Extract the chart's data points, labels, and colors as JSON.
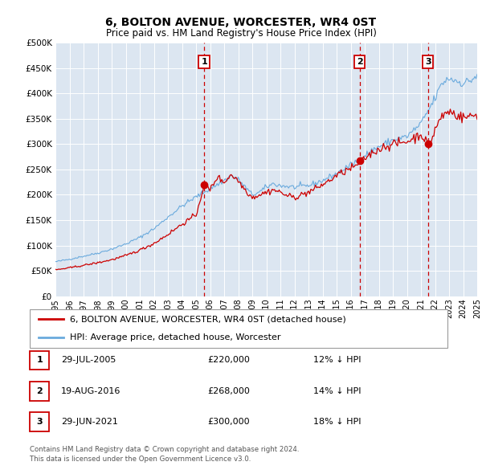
{
  "title": "6, BOLTON AVENUE, WORCESTER, WR4 0ST",
  "subtitle": "Price paid vs. HM Land Registry's House Price Index (HPI)",
  "footer1": "Contains HM Land Registry data © Crown copyright and database right 2024.",
  "footer2": "This data is licensed under the Open Government Licence v3.0.",
  "legend1": "6, BOLTON AVENUE, WORCESTER, WR4 0ST (detached house)",
  "legend2": "HPI: Average price, detached house, Worcester",
  "transaction_labels": [
    {
      "num": "1",
      "date": "29-JUL-2005",
      "price": "£220,000",
      "hpi": "12% ↓ HPI",
      "year": 2005.58
    },
    {
      "num": "2",
      "date": "19-AUG-2016",
      "price": "£268,000",
      "hpi": "14% ↓ HPI",
      "year": 2016.63
    },
    {
      "num": "3",
      "date": "29-JUN-2021",
      "price": "£300,000",
      "hpi": "18% ↓ HPI",
      "year": 2021.5
    }
  ],
  "hpi_color": "#6aaadd",
  "price_color": "#cc0000",
  "vline_color": "#cc0000",
  "plot_bg": "#dce6f1",
  "ylim": [
    0,
    500000
  ],
  "xlim": [
    1995,
    2025
  ],
  "yticks": [
    0,
    50000,
    100000,
    150000,
    200000,
    250000,
    300000,
    350000,
    400000,
    450000,
    500000
  ],
  "xticks": [
    1995,
    1996,
    1997,
    1998,
    1999,
    2000,
    2001,
    2002,
    2003,
    2004,
    2005,
    2006,
    2007,
    2008,
    2009,
    2010,
    2011,
    2012,
    2013,
    2014,
    2015,
    2016,
    2017,
    2018,
    2019,
    2020,
    2021,
    2022,
    2023,
    2024,
    2025
  ],
  "transaction_years": [
    2005.58,
    2016.63,
    2021.5
  ],
  "transaction_prices": [
    220000,
    268000,
    300000
  ]
}
